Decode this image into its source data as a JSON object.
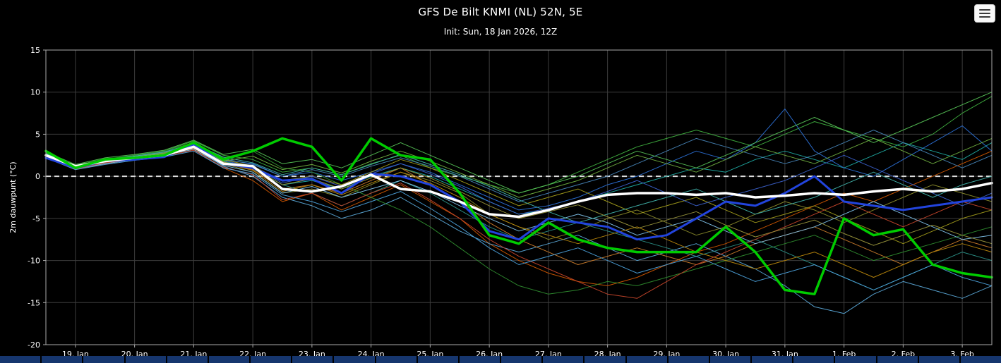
{
  "header": {
    "title": "GFS De Bilt KNMI (NL) 52N, 5E",
    "subtitle": "Init: Sun, 18 Jan 2026, 12Z",
    "menu_icon": "hamburger-icon"
  },
  "chart_data": {
    "type": "line",
    "title": "GFS De Bilt KNMI (NL) 52N, 5E",
    "subtitle": "Init: Sun, 18 Jan 2026, 12Z",
    "ylabel": "2m dauwpunt (°C)",
    "ylim": [
      -20,
      15
    ],
    "yticks": [
      15,
      10,
      5,
      0,
      -5,
      -10,
      -15,
      -20
    ],
    "x_tick_labels": [
      "19. Jan",
      "20. Jan",
      "21. Jan",
      "22. Jan",
      "23. Jan",
      "24. Jan",
      "25. Jan",
      "26. Jan",
      "27. Jan",
      "28. Jan",
      "29. Jan",
      "30. Jan",
      "31. Jan",
      "1. Feb",
      "2. Feb",
      "3. Feb"
    ],
    "x_domain": [
      -0.5,
      15.5
    ],
    "t_start": -0.5,
    "time_step": 0.5,
    "grid": true,
    "legend": false,
    "background": "#000000",
    "grid_color": "#3d3d3d",
    "frame_color": "#aaaaaa",
    "zero_line": {
      "value": 0,
      "color": "#dddddd",
      "dash": "7,5",
      "width": 2
    },
    "highlight_series": [
      {
        "name": "control_run",
        "color": "#2244dd",
        "width": 3,
        "values": [
          2.2,
          1.0,
          1.8,
          2.0,
          2.3,
          3.8,
          1.5,
          1.0,
          -0.5,
          -0.3,
          -2.0,
          0.3,
          0.0,
          -1.0,
          -3.0,
          -6.5,
          -7.5,
          -5.0,
          -5.5,
          -6.0,
          -7.5,
          -7.0,
          -5.0,
          -3.0,
          -3.5,
          -2.0,
          0.0,
          -3.0,
          -3.5,
          -4.0,
          -3.5,
          -3.0,
          -2.5
        ]
      },
      {
        "name": "ensemble_mean",
        "color": "#ffffff",
        "width": 3.5,
        "values": [
          2.5,
          1.2,
          1.8,
          2.2,
          2.5,
          3.5,
          1.5,
          1.2,
          -1.5,
          -1.8,
          -1.2,
          0.2,
          -1.5,
          -1.8,
          -3.0,
          -4.5,
          -4.8,
          -4.0,
          -3.0,
          -2.2,
          -2.0,
          -2.0,
          -2.2,
          -2.0,
          -2.5,
          -2.3,
          -2.0,
          -2.2,
          -1.8,
          -1.5,
          -1.8,
          -1.5,
          -0.8
        ]
      },
      {
        "name": "operational_run",
        "color": "#00cc00",
        "width": 3.5,
        "values": [
          3.0,
          1.0,
          2.0,
          2.2,
          2.5,
          4.0,
          2.0,
          3.0,
          4.5,
          3.5,
          -0.5,
          4.5,
          2.5,
          2.0,
          -2.0,
          -7.0,
          -8.0,
          -5.5,
          -7.5,
          -8.5,
          -9.0,
          -9.0,
          -9.0,
          -6.0,
          -9.0,
          -13.5,
          -14.0,
          -5.0,
          -7.0,
          -6.3,
          -10.5,
          -11.5,
          -12.0
        ]
      }
    ],
    "members": [
      {
        "color": "#3fae3f",
        "values": [
          2.8,
          1.2,
          2.0,
          2.5,
          3.0,
          4.2,
          2.5,
          2.0,
          0.5,
          1.0,
          0.2,
          1.5,
          2.5,
          1.0,
          0.0,
          -1.0,
          -2.0,
          -1.0,
          0.5,
          2.0,
          3.5,
          4.5,
          5.5,
          4.5,
          3.5,
          5.0,
          6.5,
          5.5,
          4.5,
          3.5,
          5.0,
          7.5,
          9.5
        ]
      },
      {
        "color": "#8a8a2a",
        "values": [
          2.5,
          1.0,
          1.8,
          2.2,
          2.8,
          3.5,
          1.5,
          0.5,
          -2.0,
          -1.5,
          -2.5,
          -1.0,
          0.5,
          -0.5,
          -2.0,
          -4.5,
          -6.0,
          -7.5,
          -6.5,
          -5.0,
          -4.0,
          -5.5,
          -7.0,
          -6.0,
          -4.5,
          -3.0,
          -4.0,
          -5.5,
          -4.0,
          -2.5,
          -1.0,
          -2.0,
          -3.0
        ]
      },
      {
        "color": "#cc5500",
        "values": [
          2.2,
          0.8,
          1.5,
          2.0,
          2.5,
          3.2,
          1.0,
          -0.5,
          -3.0,
          -2.0,
          -4.0,
          -2.5,
          -1.0,
          -3.0,
          -5.0,
          -8.0,
          -10.0,
          -11.5,
          -12.5,
          -13.0,
          -12.0,
          -10.5,
          -9.0,
          -8.0,
          -6.5,
          -5.0,
          -3.5,
          -2.0,
          -3.0,
          -1.5,
          0.0,
          1.5,
          3.0
        ]
      },
      {
        "color": "#1fa8a0",
        "values": [
          2.6,
          1.1,
          1.9,
          2.3,
          2.9,
          3.6,
          1.8,
          1.0,
          -1.0,
          -0.5,
          -1.5,
          0.0,
          1.0,
          0.0,
          -1.5,
          -3.0,
          -4.5,
          -4.0,
          -3.0,
          -2.0,
          -1.0,
          0.0,
          1.0,
          0.5,
          2.0,
          3.0,
          2.0,
          1.0,
          2.5,
          4.0,
          3.0,
          2.0,
          4.0
        ]
      },
      {
        "color": "#2b6fd4",
        "values": [
          2.4,
          1.0,
          1.7,
          2.1,
          2.6,
          3.9,
          2.0,
          1.5,
          0.0,
          0.5,
          -0.5,
          0.5,
          1.5,
          0.5,
          -1.0,
          -2.5,
          -4.0,
          -3.5,
          -2.5,
          -1.0,
          0.0,
          1.5,
          3.0,
          2.0,
          4.0,
          8.0,
          3.0,
          1.0,
          0.0,
          2.0,
          4.0,
          6.0,
          3.0
        ]
      },
      {
        "color": "#5aa7d6",
        "values": [
          2.3,
          0.9,
          1.6,
          2.0,
          2.4,
          3.4,
          1.2,
          0.0,
          -2.5,
          -3.5,
          -5.0,
          -4.0,
          -2.5,
          -4.5,
          -6.5,
          -8.0,
          -9.0,
          -8.0,
          -7.0,
          -8.5,
          -10.0,
          -9.0,
          -8.0,
          -9.5,
          -11.0,
          -13.0,
          -15.5,
          -16.3,
          -14.0,
          -12.5,
          -13.5,
          -14.5,
          -13.0
        ]
      },
      {
        "color": "#2e8b2e",
        "values": [
          2.7,
          1.3,
          2.1,
          2.4,
          3.0,
          4.0,
          2.2,
          3.0,
          1.0,
          0.5,
          -1.0,
          -2.5,
          -4.0,
          -6.0,
          -8.5,
          -11.0,
          -13.0,
          -14.0,
          -13.5,
          -12.5,
          -13.0,
          -12.0,
          -11.0,
          -10.0,
          -9.0,
          -8.0,
          -7.0,
          -8.5,
          -10.0,
          -9.0,
          -8.0,
          -7.0,
          -6.0
        ]
      },
      {
        "color": "#a09a1a",
        "values": [
          2.5,
          1.0,
          1.8,
          2.3,
          2.7,
          3.7,
          2.0,
          1.2,
          -0.5,
          0.0,
          -1.0,
          0.5,
          2.0,
          1.0,
          -0.5,
          -2.0,
          -3.5,
          -2.5,
          -1.5,
          -3.0,
          -4.5,
          -3.5,
          -2.5,
          -4.0,
          -5.5,
          -4.5,
          -3.5,
          -5.0,
          -6.5,
          -8.0,
          -6.5,
          -5.0,
          -4.0
        ]
      },
      {
        "color": "#c87a2a",
        "values": [
          2.4,
          1.1,
          1.7,
          2.2,
          2.6,
          3.3,
          1.5,
          0.8,
          -1.5,
          -1.0,
          -2.0,
          -0.5,
          1.0,
          -1.0,
          -3.0,
          -5.5,
          -7.5,
          -9.0,
          -10.5,
          -9.5,
          -8.5,
          -9.5,
          -10.5,
          -9.5,
          -8.0,
          -7.0,
          -6.0,
          -7.5,
          -9.0,
          -10.5,
          -9.0,
          -7.5,
          -8.5
        ]
      },
      {
        "color": "#4682b4",
        "values": [
          2.6,
          1.2,
          1.9,
          2.4,
          2.8,
          3.8,
          2.1,
          1.4,
          0.0,
          0.8,
          0.0,
          1.2,
          2.2,
          1.2,
          0.0,
          -1.5,
          -3.0,
          -2.0,
          -1.0,
          0.0,
          1.5,
          3.0,
          4.5,
          3.5,
          2.5,
          1.5,
          2.5,
          4.0,
          5.5,
          4.0,
          2.5,
          1.0,
          2.5
        ]
      },
      {
        "color": "#2a8f86",
        "values": [
          2.5,
          1.0,
          1.8,
          2.2,
          2.7,
          3.5,
          1.7,
          0.9,
          -1.0,
          -2.0,
          -3.5,
          -2.0,
          -0.5,
          -2.0,
          -4.0,
          -6.0,
          -7.5,
          -6.5,
          -5.5,
          -6.5,
          -7.5,
          -8.5,
          -9.5,
          -8.5,
          -7.5,
          -9.0,
          -10.5,
          -12.0,
          -13.5,
          -12.0,
          -10.5,
          -9.0,
          -10.0
        ]
      },
      {
        "color": "#7ec0e8",
        "values": [
          2.3,
          0.9,
          1.5,
          2.0,
          2.5,
          3.2,
          1.3,
          0.5,
          -2.0,
          -1.2,
          -2.5,
          -1.5,
          -0.5,
          -1.8,
          -3.5,
          -5.0,
          -6.5,
          -5.5,
          -4.5,
          -5.5,
          -7.0,
          -6.0,
          -5.0,
          -6.5,
          -8.0,
          -7.0,
          -6.0,
          -4.5,
          -3.0,
          -4.5,
          -6.0,
          -7.5,
          -7.0
        ]
      },
      {
        "color": "#55c055",
        "values": [
          2.9,
          1.4,
          2.2,
          2.6,
          3.1,
          4.3,
          2.6,
          3.2,
          1.5,
          2.0,
          1.0,
          2.5,
          4.0,
          2.5,
          1.0,
          -0.5,
          -2.0,
          -1.0,
          0.0,
          1.5,
          3.0,
          2.0,
          1.0,
          2.5,
          4.0,
          5.5,
          7.0,
          5.5,
          4.0,
          5.5,
          7.0,
          8.5,
          10.0
        ]
      },
      {
        "color": "#b8860b",
        "values": [
          2.4,
          1.0,
          1.7,
          2.1,
          2.6,
          3.4,
          1.6,
          0.7,
          -1.8,
          -1.0,
          -2.2,
          -0.8,
          0.5,
          -0.8,
          -2.5,
          -4.5,
          -6.0,
          -7.0,
          -8.0,
          -7.0,
          -6.0,
          -7.5,
          -9.0,
          -10.0,
          -11.0,
          -10.0,
          -9.0,
          -10.5,
          -12.0,
          -10.5,
          -9.0,
          -8.0,
          -9.0
        ]
      },
      {
        "color": "#c4452a",
        "values": [
          2.3,
          0.9,
          1.6,
          2.0,
          2.4,
          3.1,
          1.1,
          0.2,
          -2.8,
          -2.0,
          -3.5,
          -2.0,
          -0.8,
          -2.8,
          -5.0,
          -7.5,
          -9.5,
          -11.0,
          -12.5,
          -14.0,
          -14.5,
          -12.5,
          -10.5,
          -9.0,
          -7.5,
          -6.0,
          -4.5,
          -3.0,
          -4.5,
          -6.0,
          -4.5,
          -3.0,
          -4.0
        ]
      },
      {
        "color": "#3a5fc8",
        "values": [
          2.5,
          1.1,
          1.8,
          2.3,
          2.8,
          3.7,
          1.9,
          1.1,
          -0.8,
          0.0,
          -1.2,
          0.3,
          1.5,
          0.3,
          -1.2,
          -3.0,
          -4.5,
          -3.8,
          -3.0,
          -1.8,
          -0.5,
          -2.0,
          -3.5,
          -2.5,
          -1.5,
          -0.5,
          1.0,
          2.5,
          1.0,
          -0.5,
          -2.0,
          -3.5,
          -2.0
        ]
      },
      {
        "color": "#40b0a8",
        "values": [
          2.7,
          1.2,
          2.0,
          2.4,
          2.9,
          3.9,
          2.3,
          1.6,
          0.2,
          1.0,
          0.2,
          1.4,
          2.6,
          1.4,
          0.2,
          -1.2,
          -2.8,
          -4.2,
          -5.5,
          -4.5,
          -3.5,
          -2.5,
          -1.5,
          -3.0,
          -4.5,
          -3.5,
          -2.5,
          -1.0,
          0.5,
          -1.0,
          -2.5,
          -1.0,
          0.0
        ]
      },
      {
        "color": "#4b9fd8",
        "values": [
          2.2,
          0.8,
          1.4,
          1.9,
          2.3,
          3.0,
          1.0,
          0.3,
          -2.2,
          -3.0,
          -4.2,
          -3.0,
          -1.8,
          -3.8,
          -6.0,
          -8.5,
          -10.5,
          -9.5,
          -8.5,
          -10.0,
          -11.5,
          -10.5,
          -9.5,
          -11.0,
          -12.5,
          -11.5,
          -10.5,
          -12.0,
          -13.5,
          -12.0,
          -10.5,
          -12.0,
          -13.0
        ]
      },
      {
        "color": "#6fae3f",
        "values": [
          2.6,
          1.1,
          1.9,
          2.3,
          2.8,
          3.6,
          1.8,
          2.4,
          0.8,
          1.4,
          0.4,
          1.8,
          3.0,
          1.8,
          0.4,
          -1.0,
          -2.5,
          -1.5,
          -0.5,
          1.0,
          2.5,
          1.5,
          0.5,
          2.0,
          3.5,
          2.5,
          1.5,
          3.0,
          4.5,
          3.0,
          1.5,
          3.0,
          4.5
        ]
      },
      {
        "color": "#97923a",
        "values": [
          2.5,
          1.0,
          1.8,
          2.2,
          2.7,
          3.5,
          1.7,
          1.0,
          -1.0,
          -0.3,
          -1.5,
          -0.2,
          1.0,
          -0.2,
          -1.8,
          -3.5,
          -5.0,
          -4.2,
          -3.4,
          -4.8,
          -6.2,
          -5.2,
          -4.2,
          -5.8,
          -7.2,
          -6.2,
          -5.2,
          -6.8,
          -8.2,
          -7.0,
          -5.8,
          -7.0,
          -8.0
        ]
      }
    ]
  },
  "bottom_bar": {
    "cell_count": 24,
    "color": "#16366e"
  }
}
